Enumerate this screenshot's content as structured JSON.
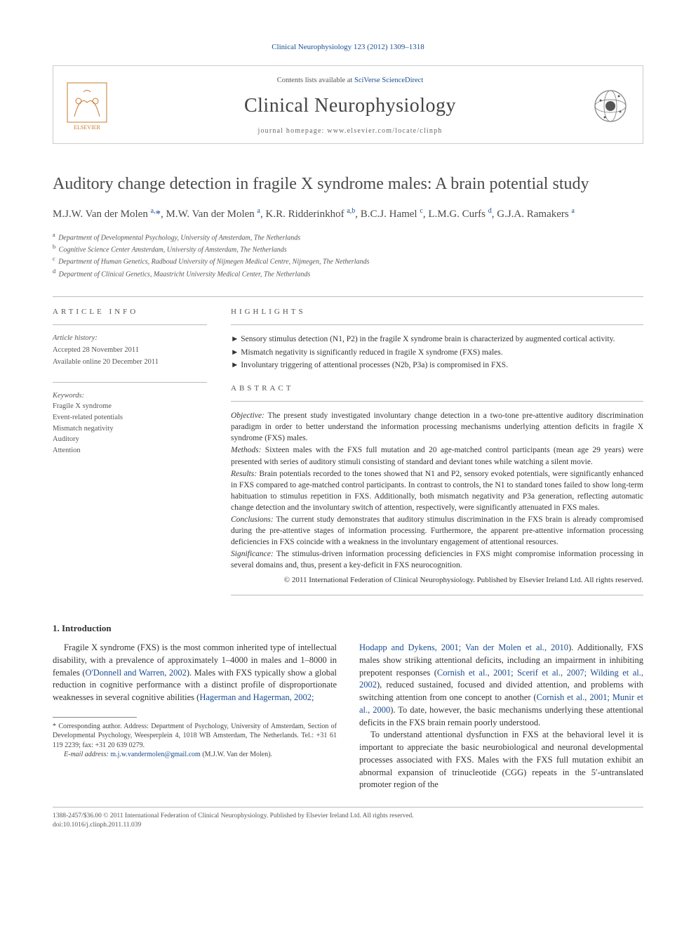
{
  "citation": "Clinical Neurophysiology 123 (2012) 1309–1318",
  "header": {
    "contents_prefix": "Contents lists available at ",
    "contents_link": "SciVerse ScienceDirect",
    "journal_name": "Clinical Neurophysiology",
    "homepage_prefix": "journal homepage: ",
    "homepage_url": "www.elsevier.com/locate/clinph"
  },
  "title": "Auditory change detection in fragile X syndrome males: A brain potential study",
  "authors_html": "M.J.W. Van der Molen <sup>a,</sup><span class='star'>*</span>, M.W. Van der Molen <sup>a</sup>, K.R. Ridderinkhof <sup>a,b</sup>, B.C.J. Hamel <sup>c</sup>, L.M.G. Curfs <sup>d</sup>, G.J.A. Ramakers <sup>a</sup>",
  "affiliations": [
    {
      "sup": "a",
      "text": "Department of Developmental Psychology, University of Amsterdam, The Netherlands"
    },
    {
      "sup": "b",
      "text": "Cognitive Science Center Amsterdam, University of Amsterdam, The Netherlands"
    },
    {
      "sup": "c",
      "text": "Department of Human Genetics, Radboud University of Nijmegen Medical Centre, Nijmegen, The Netherlands"
    },
    {
      "sup": "d",
      "text": "Department of Clinical Genetics, Maastricht University Medical Center, The Netherlands"
    }
  ],
  "article_info": {
    "heading": "ARTICLE INFO",
    "history_label": "Article history:",
    "accepted": "Accepted 28 November 2011",
    "online": "Available online 20 December 2011",
    "keywords_label": "Keywords:",
    "keywords": [
      "Fragile X syndrome",
      "Event-related potentials",
      "Mismatch negativity",
      "Auditory",
      "Attention"
    ]
  },
  "highlights": {
    "heading": "HIGHLIGHTS",
    "items": [
      "Sensory stimulus detection (N1, P2) in the fragile X syndrome brain is characterized by augmented cortical activity.",
      "Mismatch negativity is significantly reduced in fragile X syndrome (FXS) males.",
      "Involuntary triggering of attentional processes (N2b, P3a) is compromised in FXS."
    ]
  },
  "abstract": {
    "heading": "ABSTRACT",
    "objective_label": "Objective:",
    "objective": " The present study investigated involuntary change detection in a two-tone pre-attentive auditory discrimination paradigm in order to better understand the information processing mechanisms underlying attention deficits in fragile X syndrome (FXS) males.",
    "methods_label": "Methods:",
    "methods": " Sixteen males with the FXS full mutation and 20 age-matched control participants (mean age 29 years) were presented with series of auditory stimuli consisting of standard and deviant tones while watching a silent movie.",
    "results_label": "Results:",
    "results": " Brain potentials recorded to the tones showed that N1 and P2, sensory evoked potentials, were significantly enhanced in FXS compared to age-matched control participants. In contrast to controls, the N1 to standard tones failed to show long-term habituation to stimulus repetition in FXS. Additionally, both mismatch negativity and P3a generation, reflecting automatic change detection and the involuntary switch of attention, respectively, were significantly attenuated in FXS males.",
    "conclusions_label": "Conclusions:",
    "conclusions": " The current study demonstrates that auditory stimulus discrimination in the FXS brain is already compromised during the pre-attentive stages of information processing. Furthermore, the apparent pre-attentive information processing deficiencies in FXS coincide with a weakness in the involuntary engagement of attentional resources.",
    "significance_label": "Significance:",
    "significance": " The stimulus-driven information processing deficiencies in FXS might compromise information processing in several domains and, thus, present a key-deficit in FXS neurocognition.",
    "copyright": "© 2011 International Federation of Clinical Neurophysiology. Published by Elsevier Ireland Ltd. All rights reserved."
  },
  "intro": {
    "heading": "1. Introduction",
    "col1_html": "Fragile X syndrome (FXS) is the most common inherited type of intellectual disability, with a prevalence of approximately 1–4000 in males and 1–8000 in females (<span class='cite-link'>O'Donnell and Warren, 2002</span>). Males with FXS typically show a global reduction in cognitive performance with a distinct profile of disproportionate weaknesses in several cognitive abilities (<span class='cite-link'>Hagerman and Hagerman, 2002;</span>",
    "col2_html": "<span class='cite-link'>Hodapp and Dykens, 2001; Van der Molen et al., 2010</span>). Additionally, FXS males show striking attentional deficits, including an impairment in inhibiting prepotent responses (<span class='cite-link'>Cornish et al., 2001; Scerif et al., 2007; Wilding et al., 2002</span>), reduced sustained, focused and divided attention, and problems with switching attention from one concept to another (<span class='cite-link'>Cornish et al., 2001; Munir et al., 2000</span>). To date, however, the basic mechanisms underlying these attentional deficits in the FXS brain remain poorly understood.",
    "col2_p2": "To understand attentional dysfunction in FXS at the behavioral level it is important to appreciate the basic neurobiological and neuronal developmental processes associated with FXS. Males with the FXS full mutation exhibit an abnormal expansion of trinucleotide (CGG) repeats in the 5′-untranslated promoter region of the"
  },
  "footnote": {
    "corr_label": "* Corresponding author.",
    "corr_text": " Address: Department of Psychology, University of Amsterdam, Section of Developmental Psychology, Weesperplein 4, 1018 WB Amsterdam, The Netherlands. Tel.: +31 61 119 2239; fax: +31 20 639 0279.",
    "email_label": "E-mail address:",
    "email": "m.j.w.vandermolen@gmail.com",
    "email_name": " (M.J.W. Van der Molen)."
  },
  "footer": {
    "line1": "1388-2457/$36.00 © 2011 International Federation of Clinical Neurophysiology. Published by Elsevier Ireland Ltd. All rights reserved.",
    "doi": "doi:10.1016/j.clinph.2011.11.039"
  },
  "colors": {
    "link": "#1a4d8f",
    "text": "#333333",
    "muted": "#555555",
    "border": "#cccccc"
  }
}
